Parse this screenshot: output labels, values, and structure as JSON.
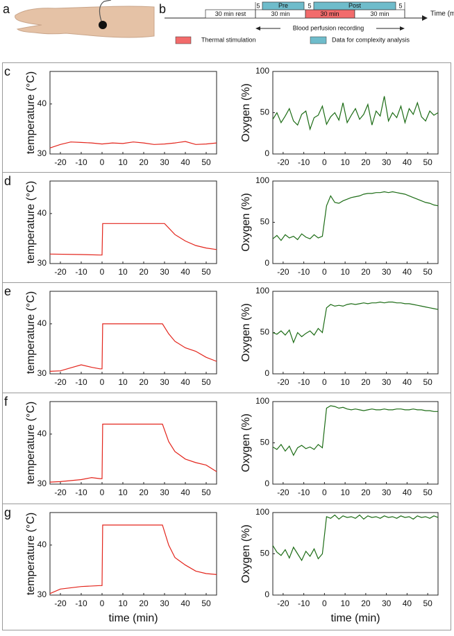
{
  "panel_labels": [
    "a",
    "b",
    "c",
    "d",
    "e",
    "f",
    "g"
  ],
  "timeline": {
    "axis_label": "Time (min)",
    "rest": "30 min rest",
    "pre_marker": "5",
    "pre": "Pre",
    "stage1": "30 min",
    "mid_marker": "5",
    "post": "Post",
    "stage2": "30 min",
    "stage3": "30 min",
    "end_marker": "5",
    "recording": "Blood perfusion recording",
    "legend": [
      "Thermal stimulation",
      "Data for complexity analysis"
    ],
    "stim_color": "#f26b6b",
    "analysis_color": "#6fbccb"
  },
  "chart_data": [
    {
      "type": "line",
      "ylabel": "temperature (°C)",
      "color": "#e3241b",
      "x": [
        -25,
        -20,
        -15,
        -10,
        -5,
        0,
        5,
        10,
        15,
        20,
        25,
        30,
        35,
        40,
        45,
        50,
        55
      ],
      "values": [
        31.2,
        31.9,
        32.4,
        32.3,
        32.2,
        32.0,
        32.2,
        32.1,
        32.4,
        32.2,
        31.9,
        32.0,
        32.2,
        32.5,
        31.9,
        32.0,
        32.2
      ],
      "xlim": [
        -25,
        55
      ],
      "xticks": [
        -20,
        -10,
        0,
        10,
        20,
        30,
        40,
        50
      ],
      "ylim": [
        30,
        46.5
      ],
      "yticks": [
        30,
        40
      ]
    },
    {
      "type": "line",
      "ylabel": "Oxygen (%)",
      "color": "#1b6b14",
      "x": [
        -25,
        -23,
        -21,
        -19,
        -17,
        -15,
        -13,
        -11,
        -9,
        -7,
        -5,
        -3,
        -1,
        1,
        3,
        5,
        7,
        9,
        11,
        13,
        15,
        17,
        19,
        21,
        23,
        25,
        27,
        29,
        31,
        33,
        35,
        37,
        39,
        41,
        43,
        45,
        47,
        49,
        51,
        53,
        55
      ],
      "values": [
        42,
        50,
        38,
        46,
        55,
        40,
        35,
        48,
        52,
        30,
        44,
        47,
        58,
        36,
        45,
        50,
        41,
        62,
        38,
        47,
        55,
        42,
        48,
        60,
        35,
        52,
        46,
        70,
        40,
        50,
        44,
        58,
        38,
        55,
        48,
        62,
        45,
        40,
        52,
        47,
        50
      ],
      "xlim": [
        -25,
        55
      ],
      "xticks": [
        -20,
        -10,
        0,
        10,
        20,
        30,
        40,
        50
      ],
      "ylim": [
        0,
        100
      ],
      "yticks": [
        0,
        50,
        100
      ]
    },
    {
      "type": "line",
      "ylabel": "temperature (°C)",
      "color": "#e3241b",
      "x": [
        -25,
        -10,
        -1,
        0,
        0.3,
        30,
        35,
        40,
        45,
        50,
        55
      ],
      "values": [
        31.9,
        31.8,
        31.7,
        31.7,
        38,
        38,
        35.8,
        34.5,
        33.6,
        33.1,
        32.8
      ],
      "xlim": [
        -25,
        55
      ],
      "xticks": [
        -20,
        -10,
        0,
        10,
        20,
        30,
        40,
        50
      ],
      "ylim": [
        30,
        46.5
      ],
      "yticks": [
        30,
        40
      ]
    },
    {
      "type": "line",
      "ylabel": "Oxygen (%)",
      "color": "#1b6b14",
      "x": [
        -25,
        -23,
        -21,
        -19,
        -17,
        -15,
        -13,
        -11,
        -9,
        -7,
        -5,
        -3,
        -1,
        1,
        3,
        5,
        7,
        9,
        11,
        13,
        15,
        17,
        19,
        21,
        23,
        25,
        27,
        29,
        31,
        33,
        35,
        37,
        39,
        41,
        43,
        45,
        47,
        49,
        51,
        53,
        55
      ],
      "values": [
        30,
        34,
        28,
        35,
        31,
        33,
        29,
        36,
        32,
        30,
        35,
        31,
        33,
        70,
        82,
        74,
        73,
        76,
        78,
        80,
        81,
        82,
        84,
        85,
        85,
        86,
        86,
        87,
        86,
        87,
        86,
        85,
        84,
        82,
        80,
        78,
        76,
        74,
        73,
        71,
        70
      ],
      "xlim": [
        -25,
        55
      ],
      "xticks": [
        -20,
        -10,
        0,
        10,
        20,
        30,
        40,
        50
      ],
      "ylim": [
        0,
        100
      ],
      "yticks": [
        0,
        50,
        100
      ]
    },
    {
      "type": "line",
      "ylabel": "temperature (°C)",
      "color": "#e3241b",
      "x": [
        -25,
        -20,
        -15,
        -10,
        -5,
        -1,
        0,
        0.3,
        29,
        32,
        35,
        40,
        45,
        50,
        55
      ],
      "values": [
        30.5,
        30.6,
        31.2,
        31.8,
        31.3,
        31.0,
        31.0,
        40.0,
        40.0,
        38,
        36.5,
        35.2,
        34.5,
        33.3,
        32.5
      ],
      "xlim": [
        -25,
        55
      ],
      "xticks": [
        -20,
        -10,
        0,
        10,
        20,
        30,
        40,
        50
      ],
      "ylim": [
        30,
        46.5
      ],
      "yticks": [
        30,
        40
      ]
    },
    {
      "type": "line",
      "ylabel": "Oxygen (%)",
      "color": "#1b6b14",
      "x": [
        -25,
        -23,
        -21,
        -19,
        -17,
        -15,
        -13,
        -11,
        -9,
        -7,
        -5,
        -3,
        -1,
        1,
        3,
        5,
        7,
        9,
        11,
        13,
        15,
        17,
        19,
        21,
        23,
        25,
        27,
        29,
        31,
        33,
        35,
        37,
        39,
        41,
        43,
        45,
        47,
        49,
        51,
        53,
        55
      ],
      "values": [
        50,
        48,
        52,
        47,
        53,
        38,
        50,
        45,
        49,
        52,
        47,
        55,
        50,
        80,
        84,
        82,
        83,
        82,
        84,
        85,
        84,
        85,
        86,
        85,
        86,
        86,
        87,
        86,
        87,
        87,
        86,
        86,
        85,
        85,
        84,
        83,
        82,
        81,
        80,
        79,
        78
      ],
      "xlim": [
        -25,
        55
      ],
      "xticks": [
        -20,
        -10,
        0,
        10,
        20,
        30,
        40,
        50
      ],
      "ylim": [
        0,
        100
      ],
      "yticks": [
        0,
        50,
        100
      ]
    },
    {
      "type": "line",
      "ylabel": "temperature (°C)",
      "color": "#e3241b",
      "x": [
        -25,
        -20,
        -10,
        -5,
        -1,
        0,
        0.3,
        29,
        32,
        35,
        40,
        45,
        50,
        55
      ],
      "values": [
        30.4,
        30.5,
        30.9,
        31.3,
        31.1,
        31.1,
        42,
        42,
        38.5,
        36.5,
        35,
        34.3,
        33.8,
        32.5
      ],
      "xlim": [
        -25,
        55
      ],
      "xticks": [
        -20,
        -10,
        0,
        10,
        20,
        30,
        40,
        50
      ],
      "ylim": [
        30,
        46.5
      ],
      "yticks": [
        30,
        40
      ]
    },
    {
      "type": "line",
      "ylabel": "Oxygen (%)",
      "color": "#1b6b14",
      "x": [
        -25,
        -23,
        -21,
        -19,
        -17,
        -15,
        -13,
        -11,
        -9,
        -7,
        -5,
        -3,
        -1,
        1,
        3,
        5,
        7,
        9,
        11,
        13,
        15,
        17,
        19,
        21,
        23,
        25,
        27,
        29,
        31,
        33,
        35,
        37,
        39,
        41,
        43,
        45,
        47,
        49,
        51,
        53,
        55
      ],
      "values": [
        45,
        42,
        48,
        40,
        46,
        35,
        44,
        47,
        43,
        45,
        42,
        48,
        44,
        92,
        95,
        94,
        92,
        93,
        91,
        90,
        91,
        90,
        89,
        90,
        91,
        90,
        90,
        91,
        90,
        90,
        91,
        91,
        90,
        90,
        91,
        90,
        90,
        89,
        89,
        88,
        88
      ],
      "xlim": [
        -25,
        55
      ],
      "xticks": [
        -20,
        -10,
        0,
        10,
        20,
        30,
        40,
        50
      ],
      "ylim": [
        0,
        100
      ],
      "yticks": [
        0,
        50,
        100
      ]
    },
    {
      "type": "line",
      "ylabel": "temperature (°C)",
      "xlabel": "time (min)",
      "color": "#e3241b",
      "x": [
        -25,
        -20,
        -10,
        -1,
        0,
        0.3,
        29,
        32,
        35,
        40,
        45,
        50,
        55
      ],
      "values": [
        30.3,
        31.2,
        31.7,
        31.9,
        31.9,
        44,
        44,
        40,
        37.5,
        36,
        34.8,
        34.3,
        34.1
      ],
      "xlim": [
        -25,
        55
      ],
      "xticks": [
        -20,
        -10,
        0,
        10,
        20,
        30,
        40,
        50
      ],
      "ylim": [
        30,
        46.5
      ],
      "yticks": [
        30,
        40
      ]
    },
    {
      "type": "line",
      "ylabel": "Oxygen (%)",
      "xlabel": "time (min)",
      "color": "#1b6b14",
      "x": [
        -25,
        -23,
        -21,
        -19,
        -17,
        -15,
        -13,
        -11,
        -9,
        -7,
        -5,
        -3,
        -1,
        1,
        3,
        5,
        7,
        9,
        11,
        13,
        15,
        17,
        19,
        21,
        23,
        25,
        27,
        29,
        31,
        33,
        35,
        37,
        39,
        41,
        43,
        45,
        47,
        49,
        51,
        53,
        55
      ],
      "values": [
        60,
        52,
        48,
        55,
        45,
        58,
        50,
        42,
        53,
        47,
        56,
        44,
        50,
        95,
        93,
        97,
        92,
        96,
        94,
        95,
        93,
        97,
        92,
        96,
        94,
        95,
        93,
        96,
        94,
        95,
        93,
        96,
        94,
        95,
        92,
        96,
        94,
        95,
        93,
        96,
        94
      ],
      "xlim": [
        -25,
        55
      ],
      "xticks": [
        -20,
        -10,
        0,
        10,
        20,
        30,
        40,
        50
      ],
      "ylim": [
        0,
        100
      ],
      "yticks": [
        0,
        50,
        100
      ]
    }
  ]
}
